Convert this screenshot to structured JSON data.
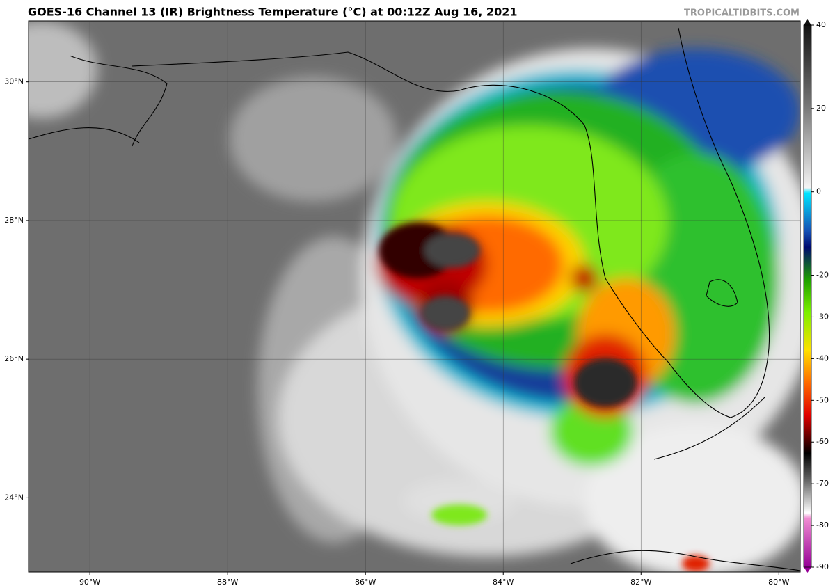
{
  "header": {
    "title": "GOES-16 Channel 13 (IR) Brightness Temperature (°C) at 00:12Z Aug 16, 2021",
    "credit": "TROPICALTIDBITS.COM"
  },
  "map": {
    "xlim": [
      -90.89,
      -79.69
    ],
    "ylim": [
      22.93,
      30.88
    ],
    "xticks": [
      {
        "value": -90,
        "label": "90°W"
      },
      {
        "value": -88,
        "label": "88°W"
      },
      {
        "value": -86,
        "label": "86°W"
      },
      {
        "value": -84,
        "label": "84°W"
      },
      {
        "value": -82,
        "label": "82°W"
      },
      {
        "value": -80,
        "label": "80°W"
      }
    ],
    "yticks": [
      {
        "value": 24,
        "label": "24°N"
      },
      {
        "value": 26,
        "label": "26°N"
      },
      {
        "value": 28,
        "label": "28°N"
      },
      {
        "value": 30,
        "label": "30°N"
      }
    ]
  },
  "colorbar": {
    "lim": [
      -90,
      40
    ],
    "ticks": [
      40,
      20,
      0,
      -20,
      -30,
      -40,
      -50,
      -60,
      -70,
      -80,
      -90
    ]
  }
}
